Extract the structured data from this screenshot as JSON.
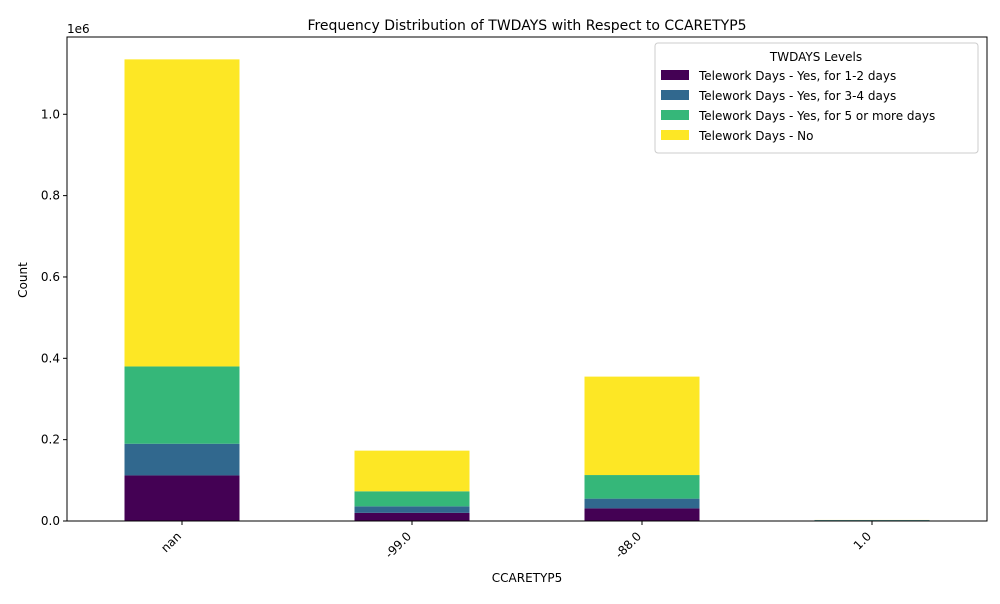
{
  "chart_data": {
    "type": "bar",
    "stacked": true,
    "title": "Frequency Distribution of TWDAYS with Respect to CCARETYP5",
    "xlabel": "CCARETYP5",
    "ylabel": "Count",
    "y_offset_label": "1e6",
    "categories": [
      "nan",
      "-99.0",
      "-88.0",
      "1.0"
    ],
    "ylim": [
      0,
      1190000
    ],
    "yticks": [
      0,
      200000,
      400000,
      600000,
      800000,
      1000000
    ],
    "ytick_labels": [
      "0.0",
      "0.2",
      "0.4",
      "0.6",
      "0.8",
      "1.0"
    ],
    "legend_title": "TWDAYS Levels",
    "legend_position": "top-right",
    "grid": false,
    "series": [
      {
        "name": "Telework Days - Yes, for 1-2 days",
        "color": "#440154",
        "values": [
          112000,
          20000,
          31000,
          600
        ]
      },
      {
        "name": "Telework Days - Yes, for 3-4 days",
        "color": "#31688e",
        "values": [
          78000,
          16000,
          24000,
          1500
        ]
      },
      {
        "name": "Telework Days - Yes, for 5 or more days",
        "color": "#35b779",
        "values": [
          190000,
          37000,
          58000,
          300
        ]
      },
      {
        "name": "Telework Days - No",
        "color": "#fde725",
        "values": [
          755000,
          100000,
          242000,
          200
        ]
      }
    ]
  }
}
